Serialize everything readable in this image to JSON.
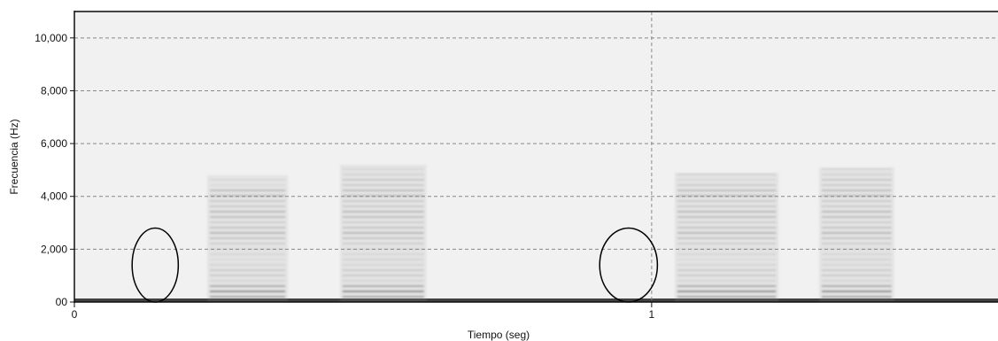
{
  "chart_data": {
    "type": "heatmap",
    "title": "",
    "xlabel": "Tiempo (seg)",
    "ylabel": "Frecuencia (Hz)",
    "xlim": [
      0,
      1.6
    ],
    "ylim": [
      0,
      11000
    ],
    "x_ticks": [
      {
        "value": 0,
        "label": "0"
      },
      {
        "value": 1,
        "label": "1"
      }
    ],
    "y_ticks": [
      {
        "value": 0,
        "label": "00"
      },
      {
        "value": 2000,
        "label": "2,000"
      },
      {
        "value": 4000,
        "label": "4,000"
      },
      {
        "value": 6000,
        "label": "6,000"
      },
      {
        "value": 8000,
        "label": "8,000"
      },
      {
        "value": 10000,
        "label": "10,000"
      }
    ],
    "grid": true,
    "colors": {
      "background": "#f1f1f1",
      "energy": "#222222",
      "grid": "#888888"
    },
    "syllables": [
      {
        "t0": 0.23,
        "t1": 0.37,
        "fmax": 4800
      },
      {
        "t0": 0.46,
        "t1": 0.61,
        "fmax": 5200
      },
      {
        "t0": 1.04,
        "t1": 1.22,
        "fmax": 4900
      },
      {
        "t0": 1.29,
        "t1": 1.42,
        "fmax": 5100
      }
    ],
    "highlight_regions": [
      {
        "x_center": 0.14,
        "y_center": 1400,
        "x_radius": 0.04,
        "y_radius": 1400
      },
      {
        "x_center": 0.96,
        "y_center": 1400,
        "x_radius": 0.05,
        "y_radius": 1400
      }
    ]
  }
}
